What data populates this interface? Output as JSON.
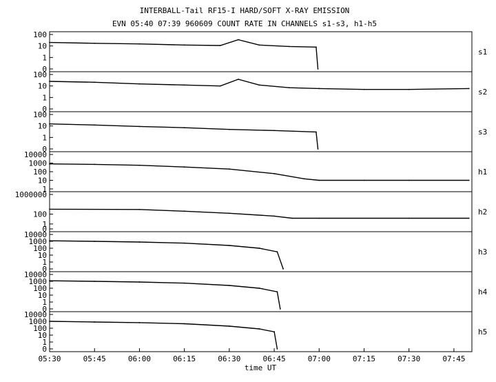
{
  "chart_data": {
    "type": "line",
    "title": "INTERBALL-Tail RF15-I HARD/SOFT X-RAY EMISSION",
    "subtitle": "EVN 05:40 07:39 960609  COUNT RATE IN CHANNELS s1-s3, h1-h5",
    "xlabel": "time UT",
    "x_ticks": [
      "05:30",
      "05:45",
      "06:00",
      "06:15",
      "06:30",
      "06:45",
      "07:00",
      "07:15",
      "07:30",
      "07:45"
    ],
    "x_range": [
      "05:30",
      "07:51"
    ],
    "y_scale": "log",
    "grid": false,
    "legend": "none",
    "line_color": "#000000",
    "panels": [
      {
        "name": "s1",
        "y_ticks": [
          "100",
          "10",
          "1",
          "0"
        ],
        "y_range": [
          0,
          100
        ],
        "series": [
          {
            "time": "05:30",
            "value": 20
          },
          {
            "time": "05:45",
            "value": 17
          },
          {
            "time": "06:00",
            "value": 15
          },
          {
            "time": "06:15",
            "value": 12
          },
          {
            "time": "06:27",
            "value": 11
          },
          {
            "time": "06:33",
            "value": 35
          },
          {
            "time": "06:40",
            "value": 12
          },
          {
            "time": "06:50",
            "value": 9
          },
          {
            "time": "06:59",
            "value": 8
          },
          {
            "time": "06:59.6",
            "value": 0
          }
        ]
      },
      {
        "name": "s2",
        "y_ticks": [
          "100",
          "10",
          "1",
          "0"
        ],
        "y_range": [
          0,
          100
        ],
        "series": [
          {
            "time": "05:30",
            "value": 25
          },
          {
            "time": "05:45",
            "value": 21
          },
          {
            "time": "06:00",
            "value": 15
          },
          {
            "time": "06:15",
            "value": 12
          },
          {
            "time": "06:27",
            "value": 10
          },
          {
            "time": "06:33",
            "value": 38
          },
          {
            "time": "06:40",
            "value": 12
          },
          {
            "time": "06:50",
            "value": 7
          },
          {
            "time": "07:00",
            "value": 6
          },
          {
            "time": "07:15",
            "value": 5
          },
          {
            "time": "07:30",
            "value": 5
          },
          {
            "time": "07:50",
            "value": 6
          }
        ]
      },
      {
        "name": "s3",
        "y_ticks": [
          "100",
          "10",
          "1",
          "0"
        ],
        "y_range": [
          0,
          100
        ],
        "series": [
          {
            "time": "05:30",
            "value": 15
          },
          {
            "time": "05:45",
            "value": 12
          },
          {
            "time": "06:00",
            "value": 9
          },
          {
            "time": "06:15",
            "value": 7
          },
          {
            "time": "06:30",
            "value": 5
          },
          {
            "time": "06:45",
            "value": 4
          },
          {
            "time": "06:59",
            "value": 3
          },
          {
            "time": "06:59.6",
            "value": 0
          }
        ]
      },
      {
        "name": "h1",
        "y_ticks": [
          "10000",
          "1000",
          "100",
          "10",
          "1"
        ],
        "y_range": [
          1,
          10000
        ],
        "series": [
          {
            "time": "05:30",
            "value": 800
          },
          {
            "time": "05:45",
            "value": 700
          },
          {
            "time": "06:00",
            "value": 550
          },
          {
            "time": "06:15",
            "value": 350
          },
          {
            "time": "06:30",
            "value": 200
          },
          {
            "time": "06:45",
            "value": 60
          },
          {
            "time": "06:55",
            "value": 15
          },
          {
            "time": "07:00",
            "value": 10
          },
          {
            "time": "07:15",
            "value": 10
          },
          {
            "time": "07:30",
            "value": 10
          },
          {
            "time": "07:50",
            "value": 10
          }
        ]
      },
      {
        "name": "h2",
        "y_ticks": [
          "1000000",
          "100",
          "1",
          "0"
        ],
        "y_range": [
          0,
          1000000
        ],
        "series": [
          {
            "time": "05:30",
            "value": 1000
          },
          {
            "time": "06:00",
            "value": 900
          },
          {
            "time": "06:15",
            "value": 400
          },
          {
            "time": "06:30",
            "value": 150
          },
          {
            "time": "06:45",
            "value": 40
          },
          {
            "time": "06:51",
            "value": 15
          },
          {
            "time": "07:00",
            "value": 15
          },
          {
            "time": "07:30",
            "value": 15
          },
          {
            "time": "07:50",
            "value": 15
          }
        ]
      },
      {
        "name": "h3",
        "y_ticks": [
          "10000",
          "1000",
          "100",
          "10",
          "1",
          "0"
        ],
        "y_range": [
          0,
          10000
        ],
        "series": [
          {
            "time": "05:30",
            "value": 1200
          },
          {
            "time": "05:45",
            "value": 1000
          },
          {
            "time": "06:00",
            "value": 800
          },
          {
            "time": "06:15",
            "value": 550
          },
          {
            "time": "06:30",
            "value": 250
          },
          {
            "time": "06:40",
            "value": 100
          },
          {
            "time": "06:46",
            "value": 30
          },
          {
            "time": "06:48",
            "value": 0
          }
        ]
      },
      {
        "name": "h4",
        "y_ticks": [
          "10000",
          "1000",
          "100",
          "10",
          "1",
          "0"
        ],
        "y_range": [
          0,
          10000
        ],
        "series": [
          {
            "time": "05:30",
            "value": 1200
          },
          {
            "time": "05:45",
            "value": 1000
          },
          {
            "time": "06:00",
            "value": 800
          },
          {
            "time": "06:15",
            "value": 550
          },
          {
            "time": "06:30",
            "value": 250
          },
          {
            "time": "06:40",
            "value": 100
          },
          {
            "time": "06:46",
            "value": 30
          },
          {
            "time": "06:47",
            "value": 0
          }
        ]
      },
      {
        "name": "h5",
        "y_ticks": [
          "10000",
          "1000",
          "100",
          "10",
          "1",
          "0"
        ],
        "y_range": [
          0,
          10000
        ],
        "series": [
          {
            "time": "05:30",
            "value": 1000
          },
          {
            "time": "05:45",
            "value": 800
          },
          {
            "time": "06:00",
            "value": 650
          },
          {
            "time": "06:15",
            "value": 450
          },
          {
            "time": "06:30",
            "value": 200
          },
          {
            "time": "06:40",
            "value": 80
          },
          {
            "time": "06:45",
            "value": 30
          },
          {
            "time": "06:46",
            "value": 0
          }
        ]
      }
    ]
  }
}
